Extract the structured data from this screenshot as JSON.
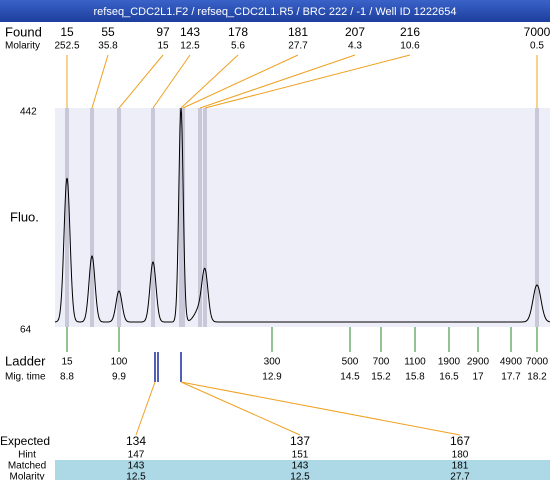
{
  "header": {
    "title": "refseq_CDC2L1.F2 / refseq_CDC2L1.R5 / BRC 222 / -1 / Well ID 1222654"
  },
  "found": {
    "label": "Found",
    "sublabel": "Molarity",
    "peaks": [
      {
        "size": "15",
        "molarity": "252.5"
      },
      {
        "size": "55",
        "molarity": "35.8"
      },
      {
        "size": "97",
        "molarity": "15"
      },
      {
        "size": "143",
        "molarity": "12.5"
      },
      {
        "size": "178",
        "molarity": "5.6"
      },
      {
        "size": "181",
        "molarity": "27.7"
      },
      {
        "size": "207",
        "molarity": "4.3"
      },
      {
        "size": "216",
        "molarity": "10.6"
      },
      {
        "size": "7000",
        "molarity": "0.5"
      }
    ]
  },
  "plot": {
    "y_top": "442",
    "y_bottom": "64",
    "label": "Fluo."
  },
  "ladder": {
    "label": "Ladder",
    "sublabel": "Mig. time",
    "bands": [
      {
        "size": "15",
        "time": "8.8"
      },
      {
        "size": "100",
        "time": "9.9"
      },
      {
        "size": "300",
        "time": "12.9"
      },
      {
        "size": "500",
        "time": "14.5"
      },
      {
        "size": "700",
        "time": "15.2"
      },
      {
        "size": "1100",
        "time": "15.8"
      },
      {
        "size": "1900",
        "time": "16.5"
      },
      {
        "size": "2900",
        "time": "17"
      },
      {
        "size": "4900",
        "time": "17.7"
      },
      {
        "size": "7000",
        "time": "18.2"
      }
    ]
  },
  "expected": {
    "labels": [
      "Expected",
      "Hint",
      "Matched",
      "Molarity"
    ],
    "columns": [
      {
        "expected": "134",
        "hint": "147",
        "matched": "143",
        "molarity": "12.5"
      },
      {
        "expected": "137",
        "hint": "151",
        "matched": "143",
        "molarity": "12.5"
      },
      {
        "expected": "167",
        "hint": "180",
        "matched": "181",
        "molarity": "27.7"
      }
    ]
  }
}
